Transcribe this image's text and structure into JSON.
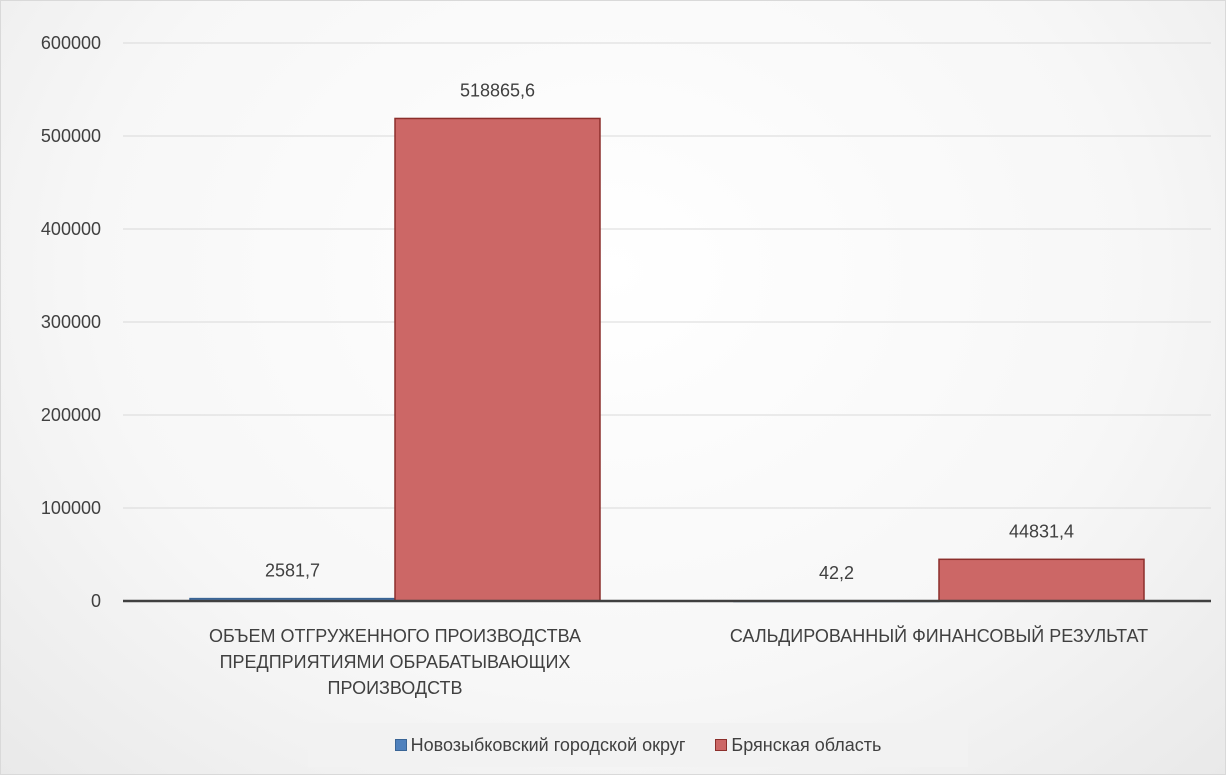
{
  "chart_data": {
    "type": "bar",
    "categories": [
      "ОБЪЕМ ОТГРУЖЕННОГО ПРОИЗВОДСТВА ПРЕДПРИЯТИЯМИ ОБРАБАТЫВАЮЩИХ ПРОИЗВОДСТВ",
      "САЛЬДИРОВАННЫЙ ФИНАНСОВЫЙ РЕЗУЛЬТАТ"
    ],
    "category_lines": [
      [
        "ОБЪЕМ ОТГРУЖЕННОГО ПРОИЗВОДСТВА",
        "ПРЕДПРИЯТИЯМИ ОБРАБАТЫВАЮЩИХ",
        "ПРОИЗВОДСТВ"
      ],
      [
        "САЛЬДИРОВАННЫЙ ФИНАНСОВЫЙ РЕЗУЛЬТАТ"
      ]
    ],
    "series": [
      {
        "name": "Новозыбковский городской округ",
        "values": [
          2581.7,
          42.2
        ],
        "labels": [
          "2581,7",
          "42,2"
        ],
        "color": "#4f81bd"
      },
      {
        "name": "Брянская область",
        "values": [
          518865.6,
          44831.4
        ],
        "labels": [
          "518865,6",
          "44831,4"
        ],
        "color": "#c0504d"
      }
    ],
    "ylim": [
      0,
      600000
    ],
    "yticks": [
      0,
      100000,
      200000,
      300000,
      400000,
      500000,
      600000
    ],
    "ytick_labels": [
      "0",
      "100000",
      "200000",
      "300000",
      "400000",
      "500000",
      "600000"
    ],
    "grid": true,
    "legend_position": "bottom"
  }
}
